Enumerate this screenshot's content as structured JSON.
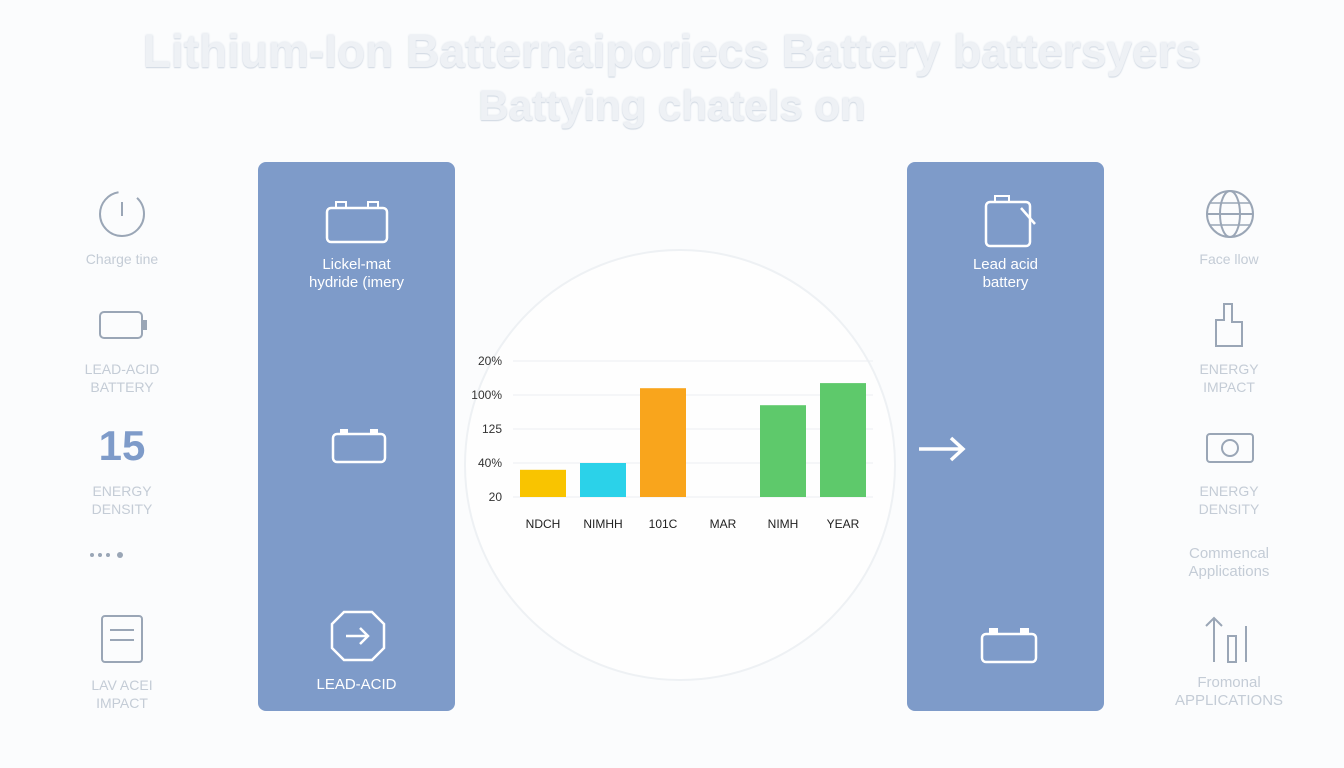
{
  "header": {
    "title": "Lithium-Ion Batternaiporiecs Battery battersyers",
    "subtitle": "Battying chatels on"
  },
  "left_column": {
    "items": [
      {
        "label": [
          "Charge tine"
        ]
      },
      {
        "label": [
          "LEAD-ACID",
          "BATTERY"
        ]
      },
      {
        "number": 15,
        "label": [
          "ENERGY",
          "DENSITY"
        ]
      },
      {
        "label": [
          "LAV ACEI",
          "IMPACT"
        ]
      }
    ]
  },
  "left_panel": {
    "top_label": [
      "Lickel-mat",
      "hydride (imery"
    ],
    "bottom_label": "LEAD-ACID"
  },
  "right_panel": {
    "label": [
      "Lead acid",
      "battery"
    ]
  },
  "right_column": {
    "items": [
      {
        "label": [
          "Face llow"
        ]
      },
      {
        "label": [
          "ENERGY",
          "IMPACT"
        ]
      },
      {
        "label": [
          "ENERGY",
          "DENSITY"
        ]
      },
      {
        "label": [
          "Commencal",
          "Applications"
        ]
      },
      {
        "label": [
          "Fromonal",
          "APPLICATIONS"
        ]
      }
    ]
  },
  "chart_data": {
    "type": "bar",
    "categories": [
      "NDCH",
      "NIMHH",
      "101C",
      "MAR",
      "NIMH",
      "YEAR"
    ],
    "values": [
      0.8,
      1.0,
      3.2,
      null,
      2.7,
      3.35
    ],
    "colors": [
      "#f9c400",
      "#2bd2e9",
      "#f9a51c",
      "#5ec96b",
      "#5ec96b",
      "#5ec96b"
    ],
    "ylim": [
      0,
      5
    ],
    "yticks": [
      {
        "value": 0,
        "label": "20"
      },
      {
        "value": 1,
        "label": "40%"
      },
      {
        "value": 2,
        "label": "125"
      },
      {
        "value": 3,
        "label": "100%"
      },
      {
        "value": 4,
        "label": "20%"
      }
    ],
    "grid": true
  }
}
